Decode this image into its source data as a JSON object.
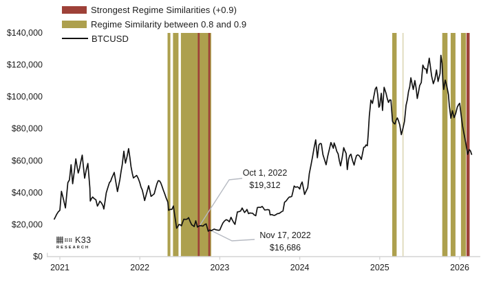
{
  "legend": {
    "items": [
      {
        "label": "Strongest Regime Similarities (+0.9)",
        "swatch": "band",
        "color": "#9e4138"
      },
      {
        "label": "Regime Similarity between 0.8 and 0.9",
        "swatch": "band",
        "color": "#ada04e"
      },
      {
        "label": "BTCUSD",
        "swatch": "line",
        "color": "#111111"
      }
    ]
  },
  "logo": {
    "brand": "K33",
    "sub": "RESEARCH"
  },
  "colors": {
    "strongest_band": "#9e4138",
    "similarity_band": "#ada04e",
    "price_line": "#111111",
    "axis": "#d4d4d4",
    "leader_line": "#b6bac2",
    "text": "#1a1a1a"
  },
  "chart_data": {
    "type": "line",
    "title": "",
    "xlabel": "",
    "ylabel": "",
    "xlim": [
      2020.92,
      2026.27
    ],
    "ylim": [
      0,
      140000
    ],
    "grid": false,
    "legend_position": "top-left",
    "x_ticks": [
      2021,
      2022,
      2023,
      2024,
      2025,
      2026
    ],
    "x_tick_labels": [
      "2021",
      "2022",
      "2023",
      "2024",
      "2025",
      "2026"
    ],
    "y_ticks": [
      0,
      20000,
      40000,
      60000,
      80000,
      100000,
      120000,
      140000
    ],
    "y_tick_labels": [
      "$0",
      "$20,000",
      "$40,000",
      "$60,000",
      "$80,000",
      "$100,000",
      "$120,000",
      "$140,000"
    ],
    "similarity_bands": [
      [
        2022.347,
        2022.382
      ],
      [
        2022.415,
        2022.484
      ],
      [
        2022.514,
        2022.893
      ],
      [
        2025.157,
        2025.212
      ],
      [
        2025.782,
        2025.847
      ],
      [
        2025.887,
        2025.947
      ],
      [
        2026.016,
        2026.078
      ]
    ],
    "similarity_bands_faint": [
      [
        2025.285,
        2025.298
      ]
    ],
    "strongest_bands": [
      [
        2022.725,
        2022.748
      ],
      [
        2022.856,
        2022.879
      ],
      [
        2026.085,
        2026.125
      ]
    ],
    "annotations": [
      {
        "date": "Oct 1, 2022",
        "price": 19312,
        "price_label": "$19,312",
        "t": 2022.747
      },
      {
        "date": "Nov 17, 2022",
        "price": 16686,
        "price_label": "$16,686",
        "t": 2022.877
      }
    ],
    "series": [
      {
        "name": "BTCUSD",
        "points": [
          [
            2020.93,
            23500
          ],
          [
            2020.96,
            26500
          ],
          [
            2021.0,
            29000
          ],
          [
            2021.02,
            40900
          ],
          [
            2021.04,
            37000
          ],
          [
            2021.07,
            30500
          ],
          [
            2021.1,
            46300
          ],
          [
            2021.12,
            48000
          ],
          [
            2021.14,
            57500
          ],
          [
            2021.16,
            45600
          ],
          [
            2021.2,
            61200
          ],
          [
            2021.23,
            52300
          ],
          [
            2021.26,
            59000
          ],
          [
            2021.28,
            63500
          ],
          [
            2021.31,
            49100
          ],
          [
            2021.35,
            58300
          ],
          [
            2021.375,
            43000
          ],
          [
            2021.38,
            34800
          ],
          [
            2021.41,
            37300
          ],
          [
            2021.45,
            35600
          ],
          [
            2021.47,
            31600
          ],
          [
            2021.5,
            34700
          ],
          [
            2021.54,
            31800
          ],
          [
            2021.55,
            29800
          ],
          [
            2021.58,
            39900
          ],
          [
            2021.62,
            46300
          ],
          [
            2021.65,
            49300
          ],
          [
            2021.68,
            52700
          ],
          [
            2021.72,
            40700
          ],
          [
            2021.75,
            48200
          ],
          [
            2021.78,
            57400
          ],
          [
            2021.8,
            66000
          ],
          [
            2021.82,
            58500
          ],
          [
            2021.86,
            67600
          ],
          [
            2021.89,
            56300
          ],
          [
            2021.92,
            49200
          ],
          [
            2021.96,
            50800
          ],
          [
            2022.0,
            46200
          ],
          [
            2022.03,
            41800
          ],
          [
            2022.06,
            35100
          ],
          [
            2022.11,
            44400
          ],
          [
            2022.14,
            37700
          ],
          [
            2022.18,
            39300
          ],
          [
            2022.23,
            47500
          ],
          [
            2022.26,
            46400
          ],
          [
            2022.31,
            39500
          ],
          [
            2022.35,
            34100
          ],
          [
            2022.36,
            29000
          ],
          [
            2022.4,
            29500
          ],
          [
            2022.42,
            31700
          ],
          [
            2022.46,
            17800
          ],
          [
            2022.49,
            20100
          ],
          [
            2022.52,
            19300
          ],
          [
            2022.55,
            23400
          ],
          [
            2022.58,
            23300
          ],
          [
            2022.61,
            24400
          ],
          [
            2022.65,
            19900
          ],
          [
            2022.68,
            18800
          ],
          [
            2022.7,
            22400
          ],
          [
            2022.72,
            18500
          ],
          [
            2022.747,
            19312
          ],
          [
            2022.79,
            19100
          ],
          [
            2022.83,
            20500
          ],
          [
            2022.855,
            15900
          ],
          [
            2022.877,
            16686
          ],
          [
            2022.89,
            16200
          ],
          [
            2022.93,
            17200
          ],
          [
            2022.97,
            16600
          ],
          [
            2023.0,
            16600
          ],
          [
            2023.04,
            21100
          ],
          [
            2023.08,
            23100
          ],
          [
            2023.12,
            21800
          ],
          [
            2023.14,
            24600
          ],
          [
            2023.19,
            20200
          ],
          [
            2023.22,
            28000
          ],
          [
            2023.26,
            28500
          ],
          [
            2023.28,
            30400
          ],
          [
            2023.31,
            27600
          ],
          [
            2023.34,
            29500
          ],
          [
            2023.36,
            26900
          ],
          [
            2023.41,
            27200
          ],
          [
            2023.45,
            25600
          ],
          [
            2023.47,
            30700
          ],
          [
            2023.53,
            31400
          ],
          [
            2023.56,
            29200
          ],
          [
            2023.62,
            29100
          ],
          [
            2023.63,
            26100
          ],
          [
            2023.67,
            25900
          ],
          [
            2023.7,
            26200
          ],
          [
            2023.74,
            27000
          ],
          [
            2023.79,
            28500
          ],
          [
            2023.81,
            34000
          ],
          [
            2023.87,
            37300
          ],
          [
            2023.9,
            37700
          ],
          [
            2023.93,
            44200
          ],
          [
            2023.97,
            43700
          ],
          [
            2024.0,
            42300
          ],
          [
            2024.03,
            46700
          ],
          [
            2024.06,
            38900
          ],
          [
            2024.1,
            43100
          ],
          [
            2024.12,
            52000
          ],
          [
            2024.16,
            62500
          ],
          [
            2024.18,
            68300
          ],
          [
            2024.2,
            73100
          ],
          [
            2024.22,
            61900
          ],
          [
            2024.24,
            69900
          ],
          [
            2024.27,
            70600
          ],
          [
            2024.29,
            63800
          ],
          [
            2024.33,
            57500
          ],
          [
            2024.35,
            62900
          ],
          [
            2024.39,
            71400
          ],
          [
            2024.42,
            67800
          ],
          [
            2024.43,
            71100
          ],
          [
            2024.48,
            64300
          ],
          [
            2024.51,
            56800
          ],
          [
            2024.55,
            68200
          ],
          [
            2024.58,
            64600
          ],
          [
            2024.595,
            54500
          ],
          [
            2024.61,
            60900
          ],
          [
            2024.64,
            64100
          ],
          [
            2024.68,
            57300
          ],
          [
            2024.71,
            63200
          ],
          [
            2024.74,
            63300
          ],
          [
            2024.77,
            60800
          ],
          [
            2024.8,
            68400
          ],
          [
            2024.83,
            69900
          ],
          [
            2024.845,
            69400
          ],
          [
            2024.855,
            76000
          ],
          [
            2024.87,
            88000
          ],
          [
            2024.89,
            98000
          ],
          [
            2024.91,
            95900
          ],
          [
            2024.93,
            101200
          ],
          [
            2024.96,
            106100
          ],
          [
            2024.99,
            93500
          ],
          [
            2025.0,
            94400
          ],
          [
            2025.02,
            102200
          ],
          [
            2025.035,
            91500
          ],
          [
            2025.055,
            106000
          ],
          [
            2025.08,
            102100
          ],
          [
            2025.11,
            96500
          ],
          [
            2025.14,
            98000
          ],
          [
            2025.16,
            84700
          ],
          [
            2025.19,
            83000
          ],
          [
            2025.22,
            86800
          ],
          [
            2025.25,
            82500
          ],
          [
            2025.27,
            76300
          ],
          [
            2025.31,
            84600
          ],
          [
            2025.33,
            94700
          ],
          [
            2025.36,
            103200
          ],
          [
            2025.39,
            111900
          ],
          [
            2025.42,
            104600
          ],
          [
            2025.44,
            110200
          ],
          [
            2025.47,
            99000
          ],
          [
            2025.5,
            107100
          ],
          [
            2025.52,
            108900
          ],
          [
            2025.54,
            119900
          ],
          [
            2025.58,
            117500
          ],
          [
            2025.59,
            114700
          ],
          [
            2025.62,
            124200
          ],
          [
            2025.65,
            112900
          ],
          [
            2025.67,
            108200
          ],
          [
            2025.71,
            116800
          ],
          [
            2025.73,
            109600
          ],
          [
            2025.755,
            114600
          ],
          [
            2025.765,
            126000
          ],
          [
            2025.78,
            121000
          ],
          [
            2025.79,
            110000
          ],
          [
            2025.8,
            104600
          ],
          [
            2025.82,
            110500
          ],
          [
            2025.84,
            106500
          ],
          [
            2025.86,
            101500
          ],
          [
            2025.87,
            94700
          ],
          [
            2025.89,
            86600
          ],
          [
            2025.91,
            91300
          ],
          [
            2025.93,
            87000
          ],
          [
            2025.95,
            89500
          ],
          [
            2025.97,
            93500
          ],
          [
            2026.0,
            96000
          ],
          [
            2026.02,
            88000
          ],
          [
            2026.05,
            78000
          ],
          [
            2026.08,
            70000
          ],
          [
            2026.1,
            64000
          ],
          [
            2026.12,
            67000
          ],
          [
            2026.15,
            64000
          ]
        ]
      }
    ]
  }
}
